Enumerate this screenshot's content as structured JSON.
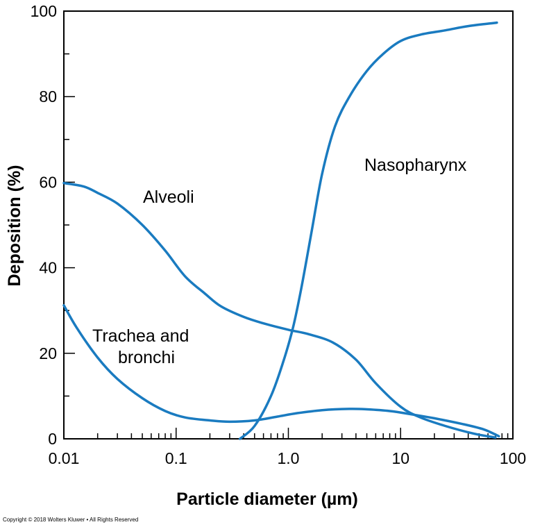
{
  "chart_data": {
    "type": "line",
    "xlabel": "Particle diameter (µm)",
    "ylabel": "Deposition (%)",
    "xscale": "log",
    "xlim": [
      0.01,
      100
    ],
    "ylim": [
      0,
      100
    ],
    "x_ticks": [
      "0.01",
      "0.1",
      "1.0",
      "10",
      "100"
    ],
    "y_ticks": [
      "0",
      "20",
      "40",
      "60",
      "80",
      "100"
    ],
    "grid": false,
    "legend": "none",
    "annotations": [
      "Alveoli",
      "Nasopharynx",
      "Trachea and",
      "bronchi"
    ],
    "series": [
      {
        "name": "Nasopharynx",
        "color": "#1a7bc0",
        "points": [
          [
            0.37,
            0
          ],
          [
            0.5,
            3
          ],
          [
            0.7,
            10
          ],
          [
            0.9,
            18
          ],
          [
            1.1,
            26
          ],
          [
            1.3,
            35
          ],
          [
            1.6,
            48
          ],
          [
            2.0,
            62
          ],
          [
            2.6,
            73
          ],
          [
            3.5,
            80
          ],
          [
            5,
            86
          ],
          [
            7,
            90
          ],
          [
            10,
            93
          ],
          [
            15,
            94.5
          ],
          [
            25,
            95.5
          ],
          [
            40,
            96.5
          ],
          [
            72,
            97.3
          ]
        ]
      },
      {
        "name": "Alveoli",
        "color": "#1a7bc0",
        "points": [
          [
            0.01,
            59.8
          ],
          [
            0.015,
            59
          ],
          [
            0.02,
            57.5
          ],
          [
            0.03,
            55
          ],
          [
            0.05,
            50
          ],
          [
            0.08,
            44
          ],
          [
            0.12,
            38
          ],
          [
            0.18,
            34
          ],
          [
            0.25,
            31
          ],
          [
            0.4,
            28.5
          ],
          [
            0.6,
            27
          ],
          [
            1.0,
            25.5
          ],
          [
            1.5,
            24.5
          ],
          [
            2.5,
            22.5
          ],
          [
            4,
            18.5
          ],
          [
            6,
            13
          ],
          [
            10,
            7.5
          ],
          [
            15,
            5
          ],
          [
            25,
            3
          ],
          [
            45,
            1.2
          ],
          [
            70,
            0.3
          ]
        ]
      },
      {
        "name": "Trachea and bronchi",
        "color": "#1a7bc0",
        "points": [
          [
            0.01,
            31.2
          ],
          [
            0.013,
            26
          ],
          [
            0.02,
            19
          ],
          [
            0.03,
            14
          ],
          [
            0.05,
            9.5
          ],
          [
            0.08,
            6.5
          ],
          [
            0.12,
            5
          ],
          [
            0.2,
            4.3
          ],
          [
            0.3,
            4
          ],
          [
            0.5,
            4.3
          ],
          [
            0.8,
            5.2
          ],
          [
            1.2,
            6
          ],
          [
            2,
            6.7
          ],
          [
            3.5,
            7
          ],
          [
            5,
            6.9
          ],
          [
            8,
            6.5
          ],
          [
            12,
            5.8
          ],
          [
            20,
            4.8
          ],
          [
            35,
            3.5
          ],
          [
            55,
            2.2
          ],
          [
            75,
            0.6
          ]
        ]
      }
    ]
  },
  "copyright": "Copyright © 2018 Wolters Kluwer • All Rights Reserved"
}
